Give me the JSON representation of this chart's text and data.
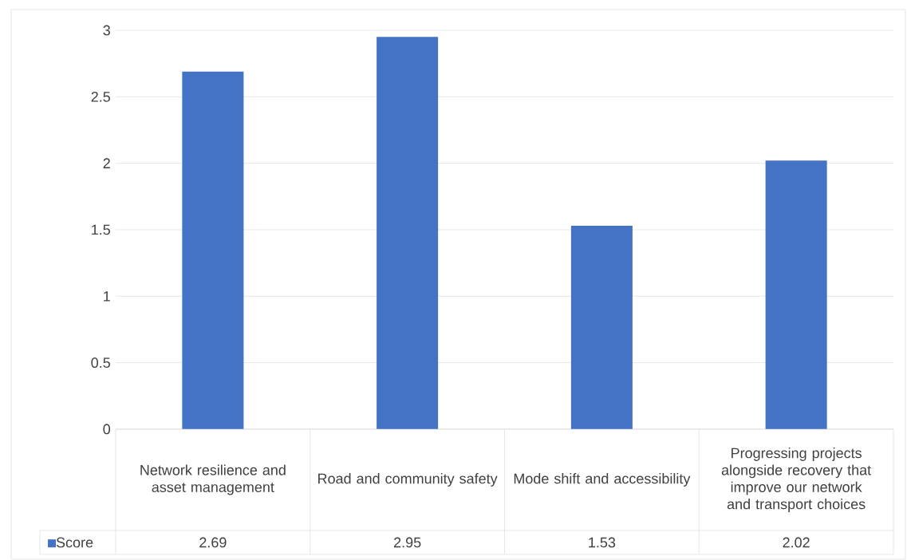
{
  "chart_data": {
    "type": "bar",
    "categories": [
      "Network resilience and asset management",
      "Road and community safety",
      "Mode shift and accessibility",
      "Progressing projects alongside recovery that improve our network and transport choices"
    ],
    "series": [
      {
        "name": "Score",
        "color": "#4472c4",
        "values": [
          2.69,
          2.95,
          1.53,
          2.02
        ]
      }
    ],
    "ylim": [
      0,
      3
    ],
    "yticks": [
      0,
      0.5,
      1,
      1.5,
      2,
      2.5,
      3
    ],
    "grid": "y",
    "legend": "bottom",
    "data_labels": true
  }
}
